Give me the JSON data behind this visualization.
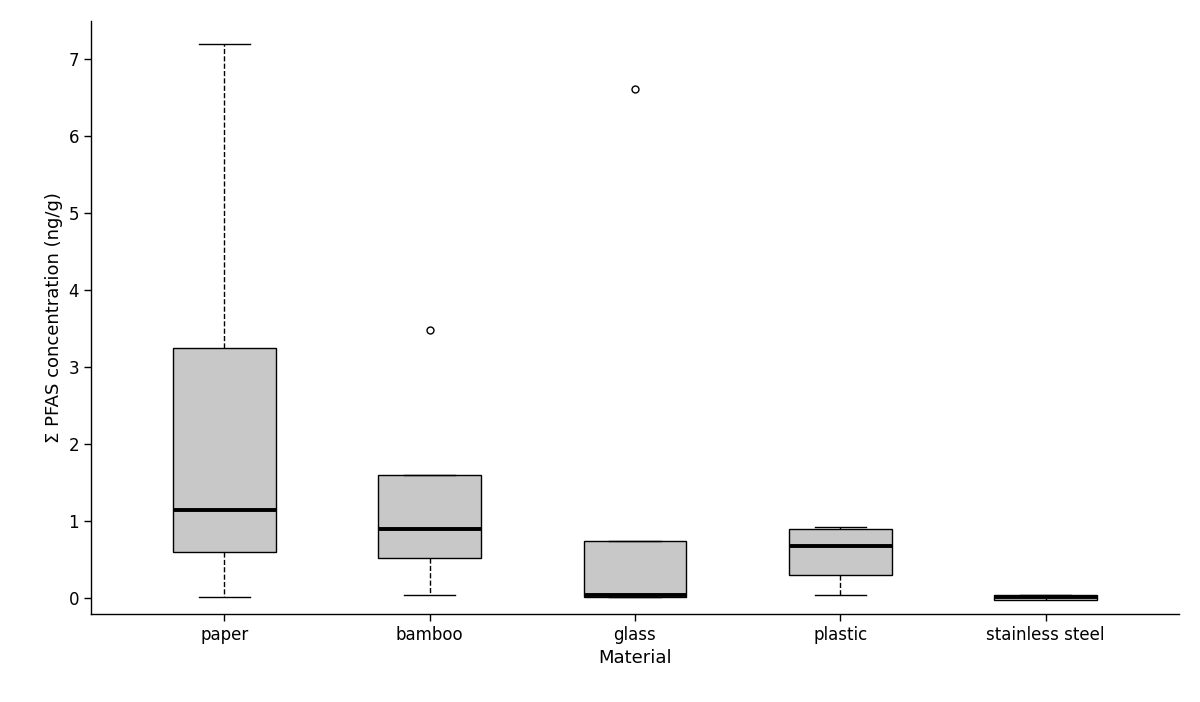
{
  "categories": [
    "paper",
    "bamboo",
    "glass",
    "plastic",
    "stainless steel"
  ],
  "xlabel": "Material",
  "ylabel": "Σ PFAS concentration (ng/g)",
  "ylim": [
    -0.2,
    7.5
  ],
  "yticks": [
    0,
    1,
    2,
    3,
    4,
    5,
    6,
    7
  ],
  "box_stats": [
    {
      "label": "paper",
      "q1": 0.6,
      "median": 1.15,
      "q3": 3.25,
      "whislo": 0.02,
      "whishi": 7.2,
      "fliers": []
    },
    {
      "label": "bamboo",
      "q1": 0.52,
      "median": 0.9,
      "q3": 1.6,
      "whislo": 0.05,
      "whishi": 1.6,
      "fliers": [
        3.48
      ]
    },
    {
      "label": "glass",
      "q1": 0.02,
      "median": 0.05,
      "q3": 0.75,
      "whislo": 0.02,
      "whishi": 0.75,
      "fliers": [
        6.62
      ]
    },
    {
      "label": "plastic",
      "q1": 0.3,
      "median": 0.68,
      "q3": 0.9,
      "whislo": 0.05,
      "whishi": 0.93,
      "fliers": []
    },
    {
      "label": "stainless steel",
      "q1": -0.02,
      "median": 0.02,
      "q3": 0.04,
      "whislo": 0.02,
      "whishi": 0.04,
      "fliers": []
    }
  ],
  "box_color": "#c8c8c8",
  "median_color": "#000000",
  "whisker_color": "#000000",
  "flier_color": "#000000",
  "background_color": "#ffffff",
  "box_width": 0.5,
  "linewidth": 1.0,
  "median_linewidth": 2.8,
  "label_fontsize": 13,
  "tick_fontsize": 12
}
